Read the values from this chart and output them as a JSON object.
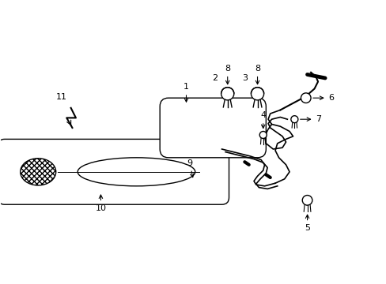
{
  "bg_color": "#ffffff",
  "line_color": "#000000",
  "figsize": [
    4.89,
    3.6
  ],
  "dpi": 100,
  "xlim": [
    -0.5,
    4.9
  ],
  "ylim": [
    -1.1,
    1.5
  ]
}
